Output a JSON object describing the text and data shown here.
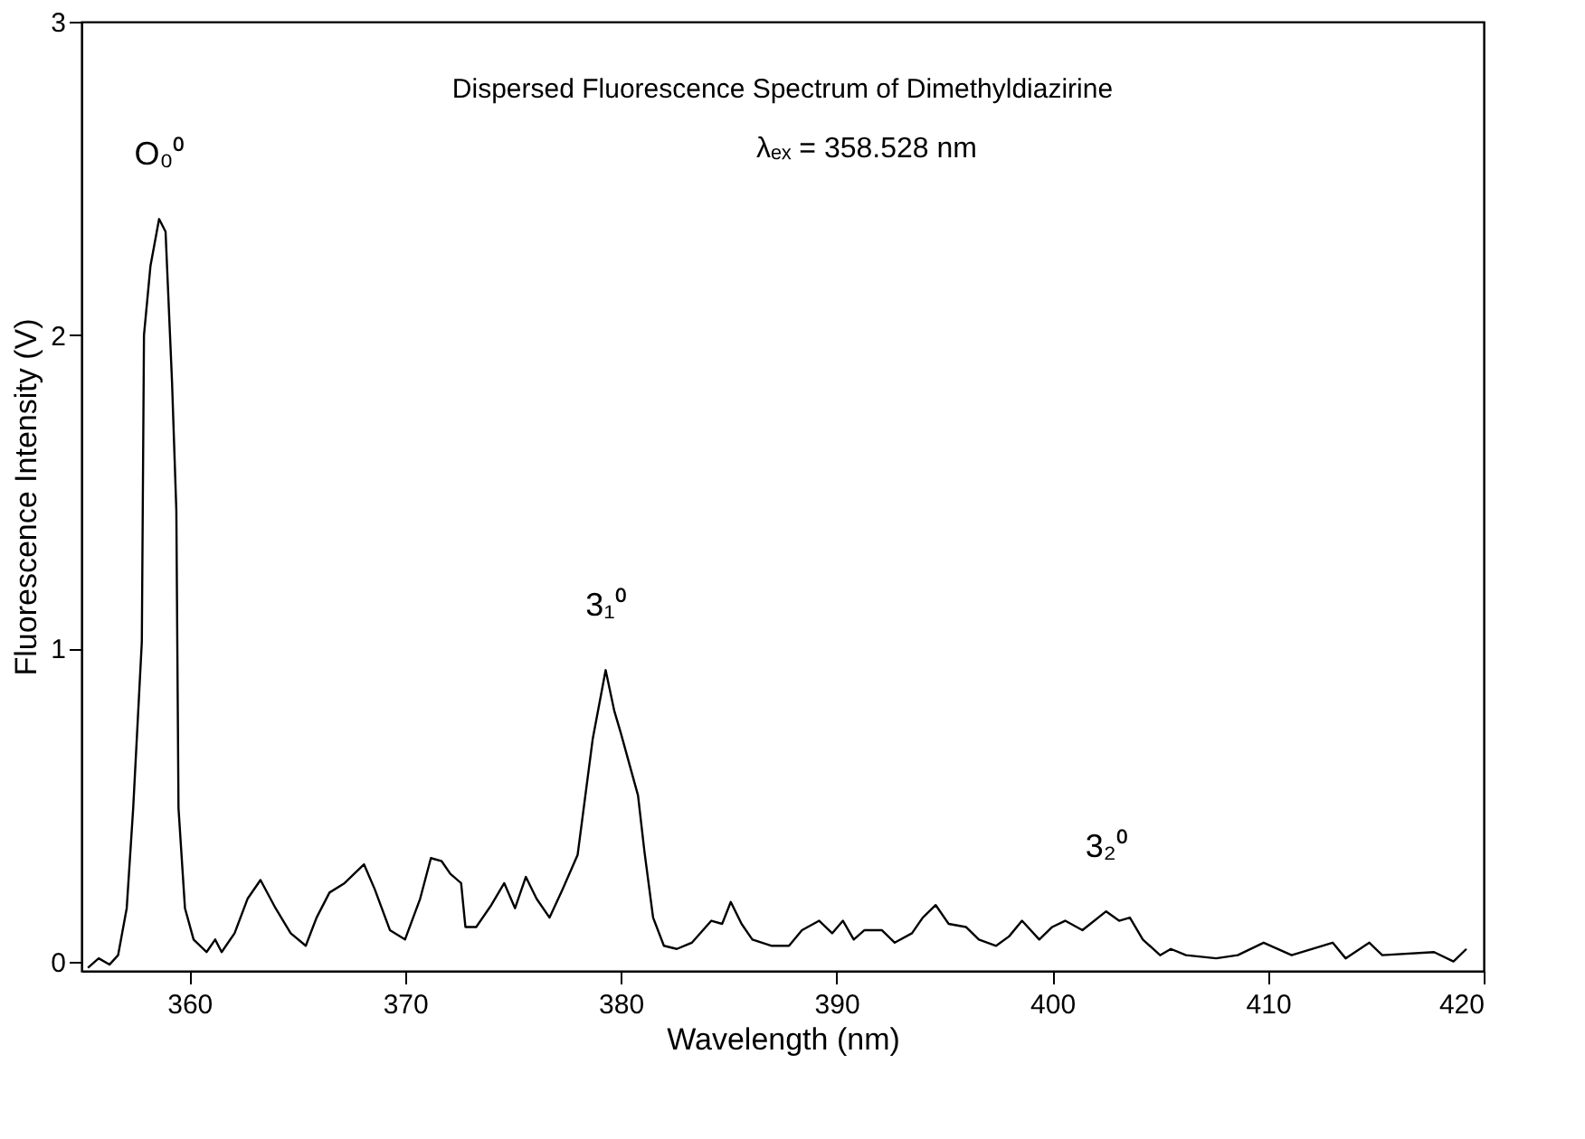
{
  "chart_data": {
    "type": "line",
    "title": "Dispersed Fluorescence Spectrum of Dimethyldiazirine",
    "xlabel": "Wavelength (nm)",
    "ylabel": "Fluorescence Intensity (V)",
    "xlim": [
      355,
      420
    ],
    "ylim": [
      -0.03,
      3
    ],
    "xticks": [
      360,
      370,
      380,
      390,
      400,
      410,
      420
    ],
    "yticks": [
      0,
      1,
      2,
      3
    ],
    "grid": false,
    "marker": "none",
    "line_style": "solid",
    "annotations": [
      {
        "text": "O₀⁰",
        "x": 358.6,
        "y": 2.37
      },
      {
        "text": "3₁⁰",
        "x": 379.3,
        "y": 0.93
      },
      {
        "text": "3₂⁰",
        "x": 402.5,
        "y": 0.16
      },
      "λₑₓ = 358.528 nm"
    ],
    "series": [
      {
        "color": "#000000",
        "x": [
          355.3,
          355.8,
          356.3,
          356.7,
          357.1,
          357.4,
          357.8,
          357.9,
          358.2,
          358.6,
          358.9,
          359.2,
          359.4,
          359.5,
          359.8,
          360.2,
          360.8,
          361.2,
          361.5,
          362.1,
          362.7,
          363.3,
          364.0,
          364.7,
          365.4,
          365.9,
          366.5,
          367.2,
          368.1,
          368.6,
          369.3,
          370.0,
          370.7,
          371.2,
          371.7,
          372.1,
          372.6,
          372.8,
          373.3,
          374.0,
          374.6,
          375.1,
          375.6,
          376.1,
          376.7,
          377.3,
          378.0,
          378.7,
          379.3,
          379.7,
          380.0,
          380.8,
          381.1,
          381.5,
          382.0,
          382.6,
          383.3,
          384.2,
          384.7,
          385.1,
          385.6,
          386.1,
          387.0,
          387.8,
          388.4,
          389.2,
          389.8,
          390.3,
          390.8,
          391.3,
          392.1,
          392.7,
          393.5,
          394.0,
          394.6,
          395.2,
          396.0,
          396.6,
          397.4,
          398.0,
          398.6,
          399.4,
          400.0,
          400.6,
          401.4,
          402.5,
          403.1,
          403.6,
          404.2,
          405.0,
          405.5,
          406.2,
          407.6,
          408.6,
          409.8,
          411.1,
          413.0,
          413.6,
          414.7,
          415.3,
          417.7,
          418.6,
          419.2
        ],
        "values": [
          -0.02,
          0.01,
          -0.01,
          0.02,
          0.17,
          0.49,
          1.02,
          2.0,
          2.22,
          2.37,
          2.33,
          1.85,
          1.44,
          0.49,
          0.17,
          0.07,
          0.03,
          0.07,
          0.03,
          0.09,
          0.2,
          0.26,
          0.17,
          0.09,
          0.05,
          0.14,
          0.22,
          0.25,
          0.31,
          0.23,
          0.1,
          0.07,
          0.2,
          0.33,
          0.32,
          0.28,
          0.25,
          0.11,
          0.11,
          0.18,
          0.25,
          0.17,
          0.27,
          0.2,
          0.14,
          0.23,
          0.34,
          0.71,
          0.93,
          0.8,
          0.73,
          0.53,
          0.35,
          0.14,
          0.05,
          0.04,
          0.06,
          0.13,
          0.12,
          0.19,
          0.12,
          0.07,
          0.05,
          0.05,
          0.1,
          0.13,
          0.09,
          0.13,
          0.07,
          0.1,
          0.1,
          0.06,
          0.09,
          0.14,
          0.18,
          0.12,
          0.11,
          0.07,
          0.05,
          0.08,
          0.13,
          0.07,
          0.11,
          0.13,
          0.1,
          0.16,
          0.13,
          0.14,
          0.07,
          0.02,
          0.04,
          0.02,
          0.01,
          0.02,
          0.06,
          0.02,
          0.06,
          0.01,
          0.06,
          0.02,
          0.03,
          0.0,
          0.04
        ]
      }
    ]
  }
}
